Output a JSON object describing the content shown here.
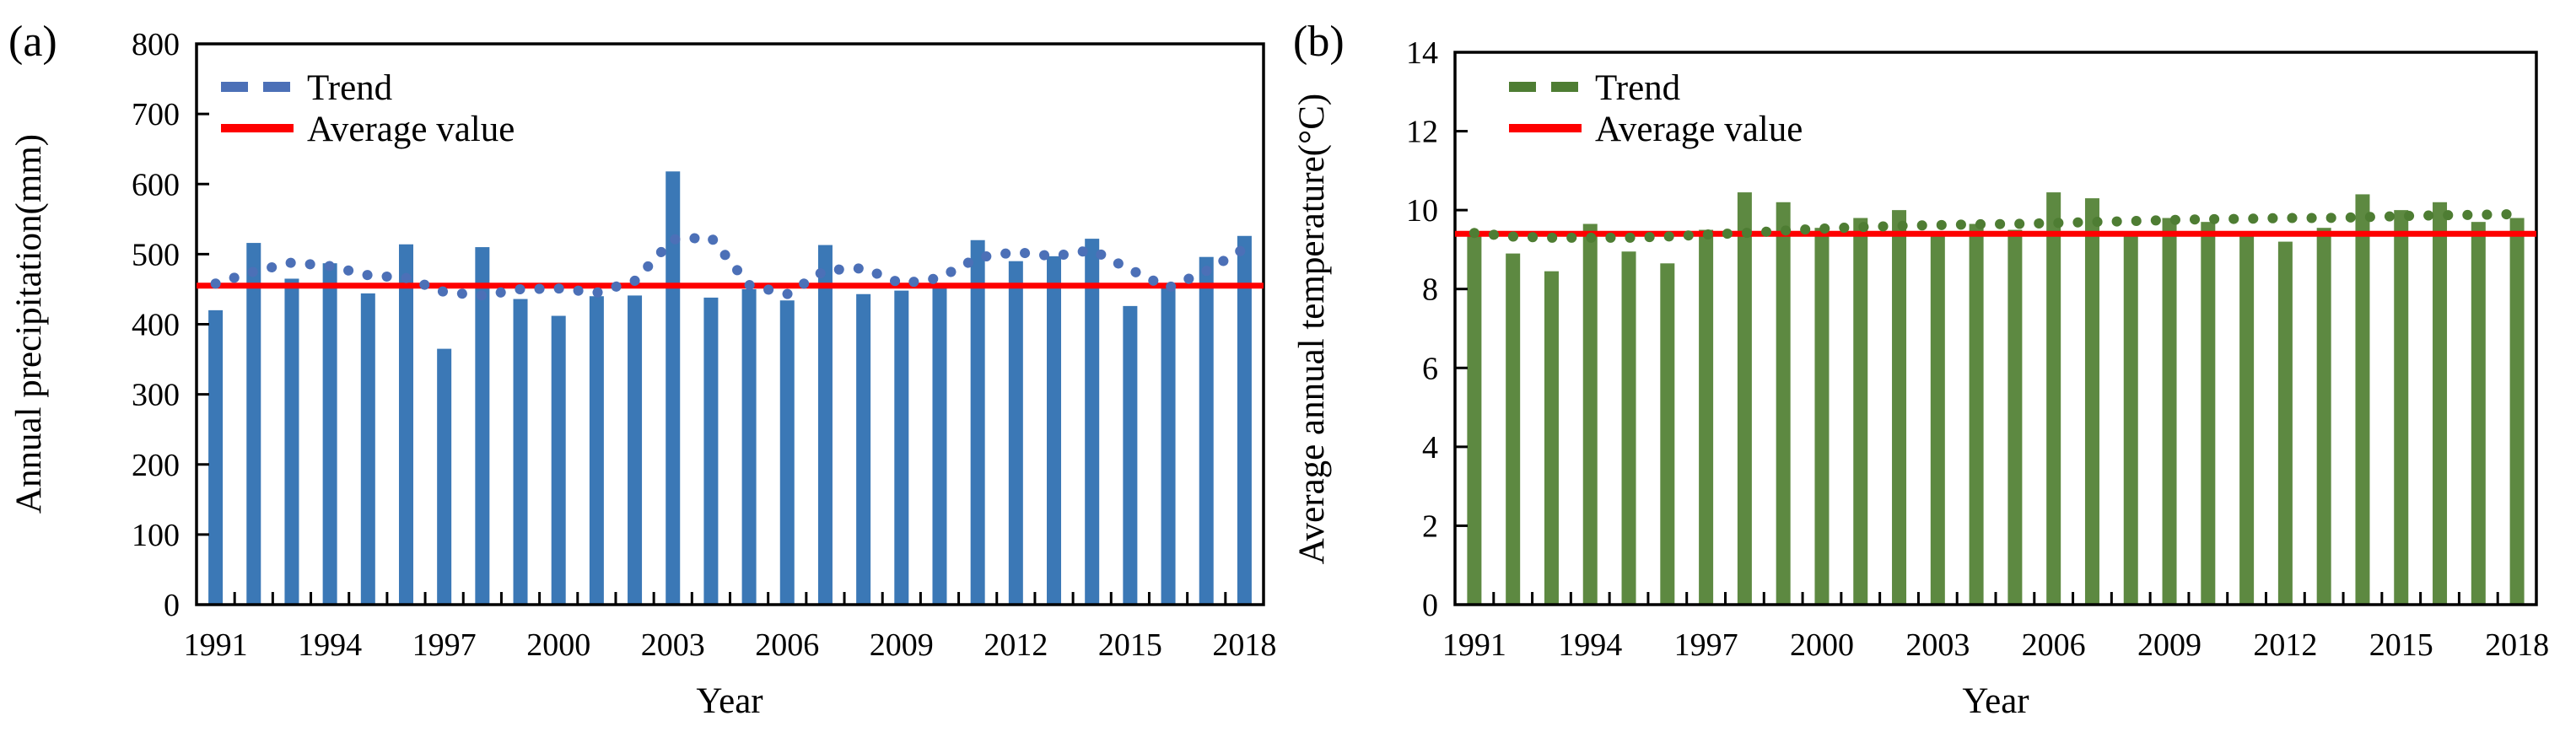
{
  "figure_type": "two-panel climate bar chart figure",
  "panels": [
    {
      "tag": "(a)",
      "ylabel": "Annual precipitation(mm)",
      "xlabel": "Year",
      "legend_trend": "Trend",
      "legend_average": "Average value"
    },
    {
      "tag": "(b)",
      "ylabel": "Average annual temperature(°C)",
      "xlabel": "Year",
      "legend_trend": "Trend",
      "legend_average": "Average value"
    }
  ],
  "chart_data": [
    {
      "type": "bar",
      "panel": "a",
      "title": "Annual precipitation by year with dotted trend curve and average line",
      "xlabel": "Year",
      "ylabel": "Annual precipitation(mm)",
      "ylim": [
        0,
        800
      ],
      "ytick_step": 100,
      "ytick_labels": [
        "0",
        "100",
        "200",
        "300",
        "400",
        "500",
        "600",
        "700",
        "800"
      ],
      "categories": [
        1991,
        1992,
        1993,
        1994,
        1995,
        1996,
        1997,
        1998,
        1999,
        2000,
        2001,
        2002,
        2003,
        2004,
        2005,
        2006,
        2007,
        2008,
        2009,
        2010,
        2011,
        2012,
        2013,
        2014,
        2015,
        2016,
        2017,
        2018
      ],
      "xtick_label_years": [
        1991,
        1994,
        1997,
        2000,
        2003,
        2006,
        2009,
        2012,
        2015,
        2018
      ],
      "xtick_labels": [
        "1991",
        "1994",
        "1997",
        "2000",
        "2003",
        "2006",
        "2009",
        "2012",
        "2015",
        "2018"
      ],
      "legend_position": "top-left-inside",
      "grid": false,
      "series": [
        {
          "name": "Annual precipitation",
          "type": "bar",
          "color": "#3B78B6",
          "values": [
            420,
            516,
            465,
            487,
            444,
            514,
            365,
            510,
            436,
            412,
            440,
            441,
            618,
            438,
            450,
            434,
            513,
            443,
            448,
            457,
            520,
            490,
            497,
            522,
            426,
            456,
            496,
            526
          ]
        },
        {
          "name": "Trend",
          "type": "dotted_line",
          "color": "#4C70B7",
          "values": [
            458,
            475,
            488,
            483,
            470,
            466,
            446,
            441,
            450,
            451,
            445,
            462,
            521,
            524,
            456,
            443,
            477,
            480,
            458,
            466,
            495,
            503,
            497,
            506,
            478,
            452,
            476,
            508
          ]
        },
        {
          "name": "Average value",
          "type": "horizontal_line",
          "color": "#FE0000",
          "value": 455
        }
      ]
    },
    {
      "type": "bar",
      "panel": "b",
      "title": "Average annual temperature by year with dotted trend curve and average line",
      "xlabel": "Year",
      "ylabel": "Average annual temperature(°C)",
      "ylim": [
        0,
        14
      ],
      "ytick_step": 2,
      "ytick_labels": [
        "0",
        "2",
        "4",
        "6",
        "8",
        "10",
        "12",
        "14"
      ],
      "categories": [
        1991,
        1992,
        1993,
        1994,
        1995,
        1996,
        1997,
        1998,
        1999,
        2000,
        2001,
        2002,
        2003,
        2004,
        2005,
        2006,
        2007,
        2008,
        2009,
        2010,
        2011,
        2012,
        2013,
        2014,
        2015,
        2016,
        2017,
        2018
      ],
      "xtick_label_years": [
        1991,
        1994,
        1997,
        2000,
        2003,
        2006,
        2009,
        2012,
        2015,
        2018
      ],
      "xtick_labels": [
        "1991",
        "1994",
        "1997",
        "2000",
        "2003",
        "2006",
        "2009",
        "2012",
        "2015",
        "2018"
      ],
      "legend_position": "top-left-inside",
      "grid": false,
      "series": [
        {
          "name": "Average annual temperature",
          "type": "bar",
          "color": "#5D8941",
          "values": [
            9.4,
            8.9,
            8.45,
            9.65,
            8.95,
            8.65,
            9.5,
            10.45,
            10.2,
            9.55,
            9.8,
            10.0,
            9.35,
            9.65,
            9.5,
            10.45,
            10.3,
            9.35,
            9.8,
            9.7,
            9.45,
            9.2,
            9.55,
            10.4,
            10.0,
            10.2,
            9.7,
            9.8
          ]
        },
        {
          "name": "Trend",
          "type": "dotted_line",
          "color": "#4E7D33",
          "values": [
            9.42,
            9.33,
            9.3,
            9.3,
            9.3,
            9.33,
            9.38,
            9.42,
            9.48,
            9.53,
            9.57,
            9.6,
            9.62,
            9.64,
            9.65,
            9.67,
            9.7,
            9.72,
            9.75,
            9.77,
            9.78,
            9.8,
            9.8,
            9.82,
            9.85,
            9.87,
            9.88,
            9.9
          ]
        },
        {
          "name": "Average value",
          "type": "horizontal_line",
          "color": "#FE0000",
          "value": 9.4
        }
      ]
    }
  ]
}
